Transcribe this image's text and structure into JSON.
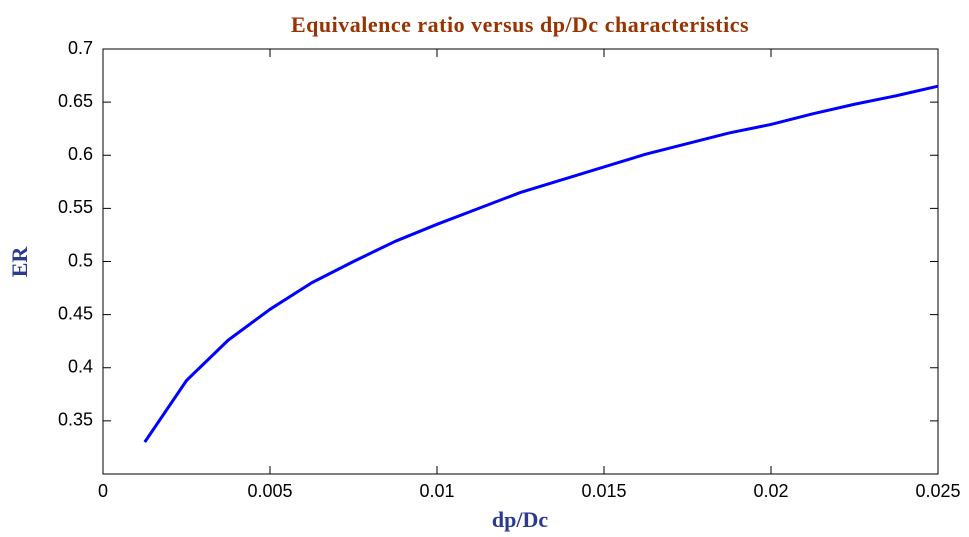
{
  "chart_data": {
    "type": "line",
    "title": "Equivalence ratio versus dp/Dc characteristics",
    "xlabel": "dp/Dc",
    "ylabel": "ER",
    "x": [
      0.00125,
      0.0025,
      0.00375,
      0.005,
      0.00625,
      0.0075,
      0.00875,
      0.01,
      0.01125,
      0.0125,
      0.01375,
      0.015,
      0.01625,
      0.0175,
      0.01875,
      0.02,
      0.02125,
      0.0225,
      0.02375,
      0.025
    ],
    "values": [
      0.33,
      0.388,
      0.426,
      0.455,
      0.48,
      0.5,
      0.519,
      0.535,
      0.55,
      0.565,
      0.577,
      0.589,
      0.601,
      0.611,
      0.621,
      0.629,
      0.639,
      0.648,
      0.656,
      0.665
    ],
    "color": "#0000ff",
    "xlim": [
      0,
      0.025
    ],
    "xticks": [
      0,
      0.005,
      0.01,
      0.015,
      0.02,
      0.025
    ],
    "ylim": [
      0.3,
      0.7
    ],
    "yticks": [
      0.35,
      0.4,
      0.45,
      0.5,
      0.55,
      0.6,
      0.65,
      0.7
    ],
    "grid": false
  }
}
